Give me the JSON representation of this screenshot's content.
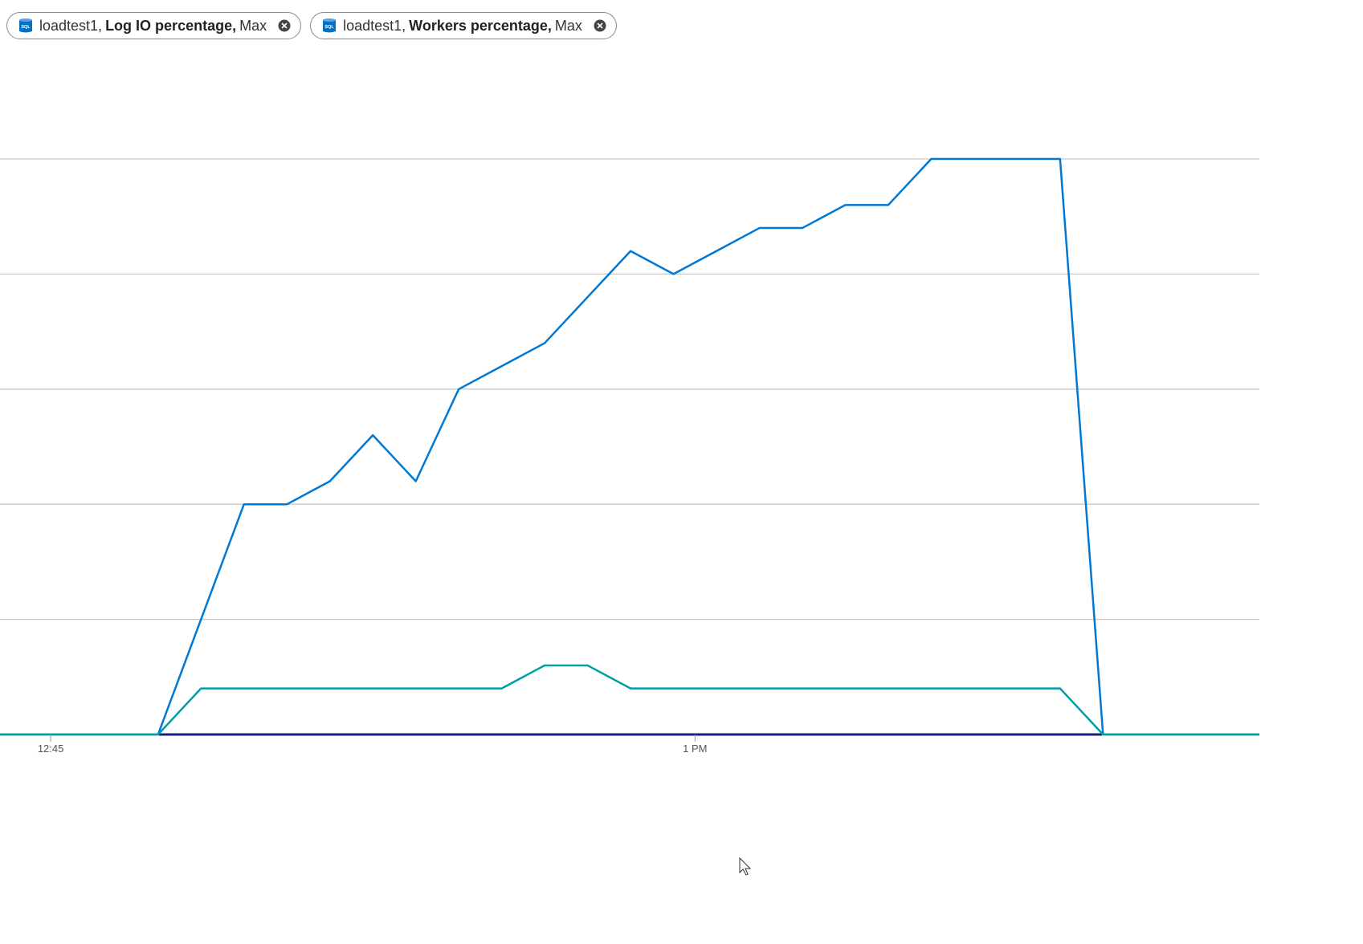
{
  "chart_data": {
    "type": "line",
    "icon_text": "SQL",
    "x": [
      763.5,
      764.5,
      765.5,
      766.5,
      767.5,
      768.5,
      769.5,
      770.5,
      771.5,
      772.5,
      773.5,
      774.5,
      775.5,
      776.5,
      777.5,
      778.5,
      779.5,
      780.5,
      781.5,
      782.5,
      783.5,
      784.5,
      785.5,
      786.5,
      787.5,
      788.5,
      789.5,
      790.5,
      791.5,
      792.5,
      793.5
    ],
    "series": [
      {
        "name": "Log IO percentage,",
        "resource": "loadtest1,",
        "aggregation": "Max",
        "color": "#0078d4",
        "values": [
          0,
          0,
          0,
          0,
          0,
          20,
          40,
          40,
          44,
          52,
          44,
          60,
          64,
          68,
          76,
          84,
          80,
          84,
          88,
          88,
          92,
          92,
          100,
          100,
          100,
          100,
          0,
          0,
          0,
          0,
          0
        ]
      },
      {
        "name": "Workers percentage,",
        "resource": "loadtest1,",
        "aggregation": "Max",
        "color": "#009ea6",
        "values": [
          0,
          0,
          0,
          0,
          0,
          8,
          8,
          8,
          8,
          8,
          8,
          8,
          8,
          12,
          12,
          8,
          8,
          8,
          8,
          8,
          8,
          8,
          8,
          8,
          8,
          8,
          0,
          0,
          0,
          0,
          0
        ]
      }
    ],
    "xlim": [
      763.82,
      793.14
    ],
    "xticks": [
      {
        "value": 765,
        "label": "12:45"
      },
      {
        "value": 780,
        "label": "1 PM"
      }
    ],
    "ylim": [
      0,
      100
    ],
    "ygrid": [
      20,
      40,
      60,
      80,
      100
    ],
    "grid": true
  }
}
